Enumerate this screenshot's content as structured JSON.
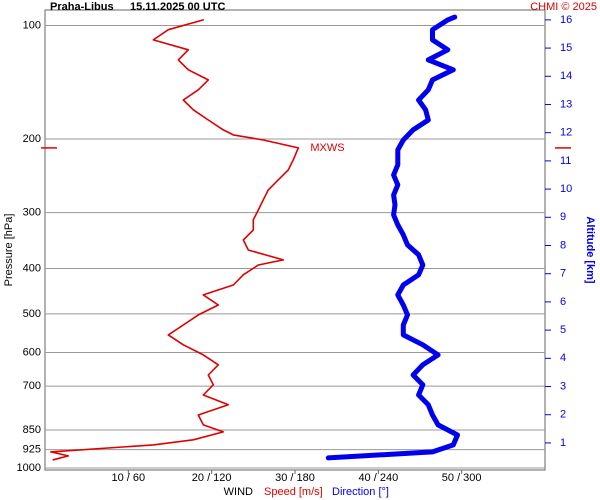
{
  "chart_data": {
    "type": "profile",
    "station": "Praha-Libus",
    "time": "15.11.2025 00 UTC",
    "credit": "CHMI © 2025",
    "ylabel": "Pressure [hPa]",
    "y2label": "Altitude [km]",
    "xlabel": "WIND",
    "max_wind_label": "MXWS",
    "xlim": [
      0,
      60
    ],
    "x2lim": [
      0,
      360
    ],
    "xticks": [
      {
        "value": 10,
        "label": "10 / 60"
      },
      {
        "value": 20,
        "label": "20 / 120"
      },
      {
        "value": 30,
        "label": "30 / 180"
      },
      {
        "value": 40,
        "label": "40 / 240"
      },
      {
        "value": 50,
        "label": "50 / 300"
      }
    ],
    "yticks": [
      100,
      200,
      300,
      400,
      500,
      600,
      700,
      850,
      925,
      1000
    ],
    "y2lim": [
      0.04,
      16.35
    ],
    "y2ticks": [
      1,
      2,
      3,
      4,
      5,
      6,
      7,
      8,
      9,
      10,
      11,
      12,
      13,
      14,
      15,
      16
    ],
    "grid": true,
    "series": [
      {
        "name": "Speed [m/s]",
        "color": "#e00000",
        "axis": "x",
        "altitude": [
          0.4,
          0.54,
          0.68,
          0.93,
          1.11,
          1.39,
          1.64,
          1.99,
          2.35,
          2.7,
          3.06,
          3.41,
          3.77,
          4.12,
          4.48,
          4.83,
          5.18,
          5.54,
          5.89,
          6.25,
          6.6,
          6.96,
          7.31,
          7.49,
          7.84,
          8.2,
          8.55,
          8.91,
          9.26,
          9.62,
          9.97,
          10.33,
          10.68,
          11.04,
          11.46,
          11.74,
          11.92,
          12.1,
          12.45,
          12.81,
          13.16,
          13.52,
          13.87,
          14.23,
          14.58,
          14.94,
          15.29,
          15.65,
          16.0
        ],
        "values": [
          1.0,
          2.8,
          0.7,
          13.0,
          17.8,
          21.4,
          19.0,
          18.4,
          22.0,
          19.0,
          20.2,
          19.6,
          20.8,
          19.0,
          16.6,
          14.8,
          16.6,
          18.4,
          20.8,
          19.0,
          22.6,
          23.8,
          25.6,
          28.6,
          24.4,
          23.8,
          25.0,
          25.0,
          25.6,
          26.2,
          26.8,
          28.0,
          29.2,
          29.8,
          30.4,
          26.2,
          22.6,
          21.4,
          19.6,
          17.8,
          16.6,
          18.4,
          19.6,
          17.2,
          16.0,
          17.2,
          13.0,
          14.8,
          19.0
        ]
      },
      {
        "name": "Direction [°]",
        "color": "#0000ee",
        "axis": "x2",
        "altitude": [
          0.47,
          0.68,
          0.93,
          1.28,
          1.64,
          1.99,
          2.35,
          2.7,
          3.06,
          3.41,
          3.77,
          4.12,
          4.48,
          4.83,
          5.18,
          5.54,
          5.89,
          6.25,
          6.6,
          6.96,
          7.31,
          7.67,
          8.02,
          8.38,
          8.73,
          9.09,
          9.44,
          9.79,
          10.15,
          10.5,
          10.86,
          11.39,
          11.74,
          12.1,
          12.45,
          12.81,
          13.16,
          13.52,
          13.87,
          14.23,
          14.58,
          14.94,
          15.29,
          15.65,
          16.0,
          16.1
        ],
        "values": [
          204,
          279,
          294,
          297,
          283,
          279,
          276,
          269,
          272,
          265,
          272,
          283,
          272,
          258,
          258,
          261,
          258,
          254,
          258,
          269,
          272,
          269,
          261,
          258,
          254,
          251,
          252,
          251,
          254,
          251,
          254,
          254,
          258,
          265,
          276,
          274,
          269,
          276,
          279,
          294,
          276,
          290,
          279,
          279,
          290,
          295
        ]
      }
    ]
  }
}
